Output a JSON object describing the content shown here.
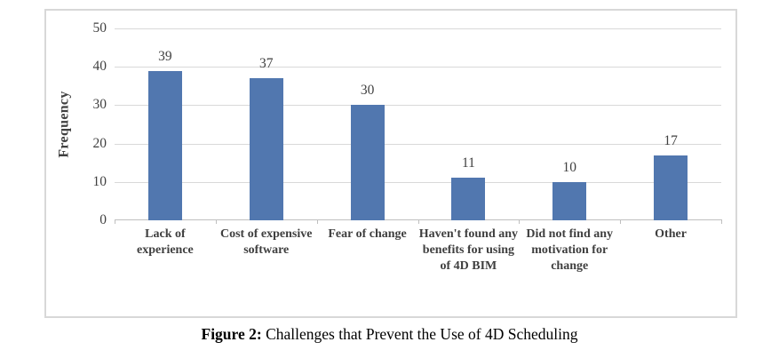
{
  "caption": {
    "label": "Figure 2:",
    "text": " Challenges that Prevent the Use of 4D Scheduling"
  },
  "chart_data": {
    "type": "bar",
    "title": "Figure 2: Challenges that Prevent the Use of 4D Scheduling",
    "categories": [
      "Lack of experience",
      "Cost of expensive software",
      "Fear of change",
      "Haven't found any benefits for using of 4D BIM",
      "Did not find any motivation for change",
      "Other"
    ],
    "values": [
      39,
      37,
      30,
      11,
      10,
      17
    ],
    "data_labels": [
      39,
      37,
      30,
      11,
      10,
      17
    ],
    "xlabel": "",
    "ylabel": "Frequency",
    "ylim": [
      0,
      50
    ],
    "yticks": [
      0,
      10,
      20,
      30,
      40,
      50
    ],
    "grid": true,
    "legend_position": "none",
    "bar_color": "#5177AF",
    "gridline_color": "#D9D9D9",
    "axis_line_color": "#BFBFBF",
    "text_color": "#404040"
  }
}
